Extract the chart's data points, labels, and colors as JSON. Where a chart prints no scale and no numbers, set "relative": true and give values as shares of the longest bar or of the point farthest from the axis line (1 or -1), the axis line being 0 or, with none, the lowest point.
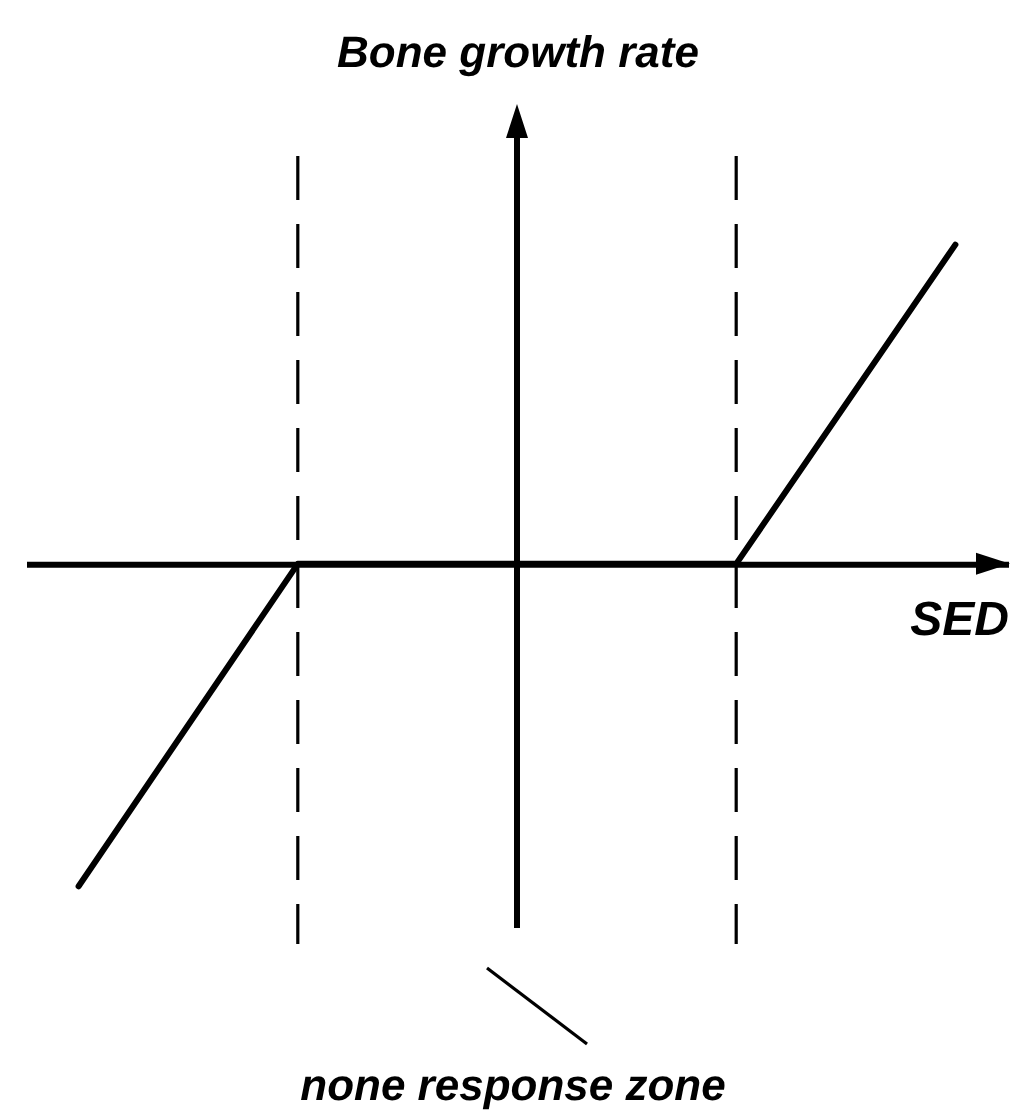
{
  "chart_data": {
    "type": "line",
    "relative": true,
    "xlabel": "SED",
    "ylabel": "Bone growth rate",
    "categories": [
      null,
      null,
      null,
      null,
      null
    ],
    "values": [
      -1,
      0,
      0,
      0,
      0.99
    ],
    "color": "#000000",
    "marker": "none",
    "line_style": "solid",
    "annotations": [
      "none response zone"
    ]
  }
}
